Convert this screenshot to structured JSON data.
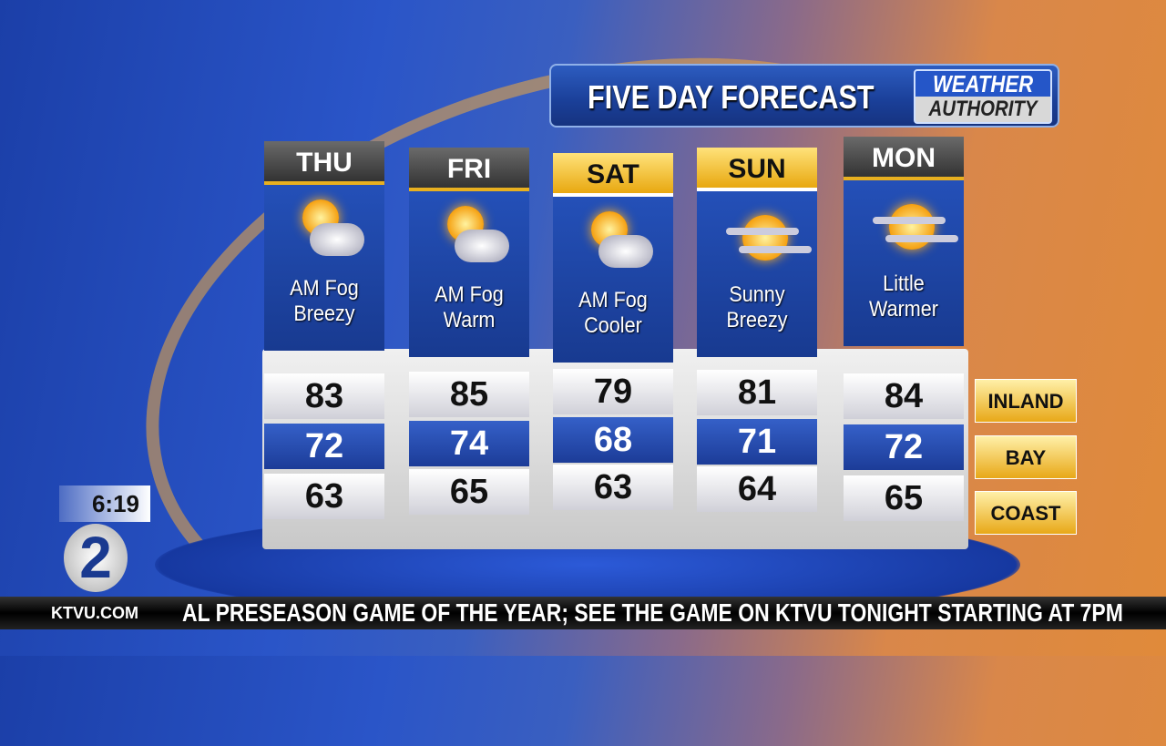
{
  "header": {
    "title": "FIVE DAY FORECAST",
    "brand_line1": "WEATHER",
    "brand_line2": "AUTHORITY"
  },
  "days": [
    {
      "day": "THU",
      "cond1": "AM Fog",
      "cond2": "Breezy",
      "icon": "partly-cloudy-icon",
      "inland": "83",
      "bay": "72",
      "coast": "63"
    },
    {
      "day": "FRI",
      "cond1": "AM Fog",
      "cond2": "Warm",
      "icon": "partly-cloudy-icon",
      "inland": "85",
      "bay": "74",
      "coast": "65"
    },
    {
      "day": "SAT",
      "cond1": "AM Fog",
      "cond2": "Cooler",
      "icon": "partly-cloudy-icon",
      "inland": "79",
      "bay": "68",
      "coast": "63"
    },
    {
      "day": "SUN",
      "cond1": "Sunny",
      "cond2": "Breezy",
      "icon": "hazy-sun-icon",
      "inland": "81",
      "bay": "71",
      "coast": "64"
    },
    {
      "day": "MON",
      "cond1": "Little",
      "cond2": "Warmer",
      "icon": "hazy-sun-icon",
      "inland": "84",
      "bay": "72",
      "coast": "65"
    }
  ],
  "regions": {
    "inland": "INLAND",
    "bay": "BAY",
    "coast": "COAST"
  },
  "clock": "6:19",
  "station": {
    "logo": "2",
    "site": "KTVU.COM"
  },
  "ticker": "AL PRESEASON GAME OF THE YEAR; SEE THE GAME ON KTVU TONIGHT STARTING AT 7PM",
  "colors": {
    "gold": "#e8a818",
    "blue": "#1c3c98"
  }
}
